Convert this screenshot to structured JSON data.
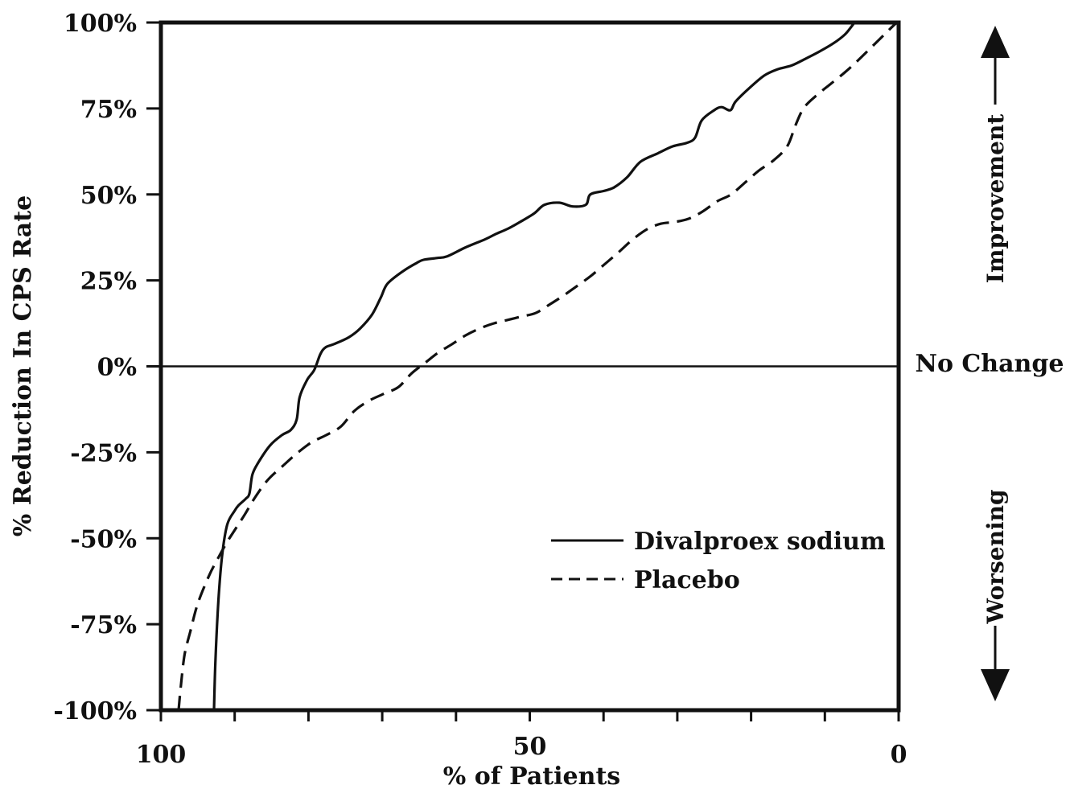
{
  "chart_data": {
    "type": "line",
    "xlabel": "% of Patients",
    "ylabel": "% Reduction In CPS Rate",
    "xlim": [
      100,
      0
    ],
    "ylim": [
      -100,
      100
    ],
    "x_ticks": [
      100,
      50,
      0
    ],
    "x_tick_labels": [
      "100",
      "50",
      "0"
    ],
    "x_minor_ticks": [
      100,
      90,
      80,
      70,
      60,
      50,
      40,
      30,
      20,
      10,
      0
    ],
    "y_ticks": [
      100,
      75,
      50,
      25,
      0,
      -25,
      -50,
      -75,
      -100
    ],
    "y_tick_labels": [
      "100%",
      "75%",
      "50%",
      "25%",
      "0%",
      "-25%",
      "-50%",
      "-75%",
      "-100%"
    ],
    "reference_line": {
      "y": 0,
      "label": "No Change"
    },
    "annotations": {
      "up": "Improvement",
      "down": "Worsening"
    },
    "legend_position": "lower-right",
    "grid": false,
    "series": [
      {
        "name": "Divalproex sodium",
        "style": "solid",
        "points": [
          [
            92.8,
            -100
          ],
          [
            92.6,
            -85
          ],
          [
            92.2,
            -68
          ],
          [
            91.7,
            -55
          ],
          [
            91,
            -46
          ],
          [
            90,
            -42
          ],
          [
            89.5,
            -40.5
          ],
          [
            88.5,
            -38.5
          ],
          [
            88,
            -37
          ],
          [
            87.6,
            -31.5
          ],
          [
            86.8,
            -28
          ],
          [
            85.2,
            -23
          ],
          [
            83.6,
            -20
          ],
          [
            82.4,
            -18.5
          ],
          [
            81.6,
            -15.5
          ],
          [
            81.2,
            -9
          ],
          [
            80.2,
            -4
          ],
          [
            79.2,
            -1
          ],
          [
            78.4,
            3.5
          ],
          [
            77.7,
            5.5
          ],
          [
            76.5,
            6.5
          ],
          [
            74.5,
            8.5
          ],
          [
            73,
            11
          ],
          [
            71.4,
            15
          ],
          [
            70.2,
            20
          ],
          [
            69.3,
            24
          ],
          [
            67.3,
            27.5
          ],
          [
            65.4,
            30
          ],
          [
            64.4,
            31
          ],
          [
            62.6,
            31.5
          ],
          [
            61.2,
            32
          ],
          [
            58.8,
            34.5
          ],
          [
            56,
            37
          ],
          [
            54.6,
            38.5
          ],
          [
            53,
            40
          ],
          [
            51.3,
            42
          ],
          [
            49.4,
            44.5
          ],
          [
            48,
            47
          ],
          [
            46,
            47.6
          ],
          [
            44.2,
            46.5
          ],
          [
            42.4,
            47
          ],
          [
            41.8,
            50
          ],
          [
            40,
            51
          ],
          [
            38.6,
            52
          ],
          [
            36.8,
            55
          ],
          [
            35,
            59.5
          ],
          [
            32.6,
            62
          ],
          [
            30.6,
            64
          ],
          [
            28.7,
            65
          ],
          [
            27.6,
            66.5
          ],
          [
            26.7,
            71.5
          ],
          [
            25,
            74.5
          ],
          [
            24,
            75.4
          ],
          [
            22.8,
            74.5
          ],
          [
            22.1,
            77
          ],
          [
            20.2,
            81
          ],
          [
            18.2,
            84.6
          ],
          [
            16.4,
            86.4
          ],
          [
            14.5,
            87.5
          ],
          [
            12.6,
            89.5
          ],
          [
            10.7,
            91.6
          ],
          [
            8.8,
            94
          ],
          [
            7.3,
            96.5
          ],
          [
            6.4,
            98.8
          ],
          [
            6,
            100
          ]
        ]
      },
      {
        "name": "Placebo",
        "style": "dashed",
        "points": [
          [
            97.6,
            -100
          ],
          [
            97.3,
            -93
          ],
          [
            96.8,
            -84
          ],
          [
            96,
            -77
          ],
          [
            95,
            -69
          ],
          [
            93.5,
            -61
          ],
          [
            92.3,
            -56
          ],
          [
            91,
            -51
          ],
          [
            89.8,
            -47
          ],
          [
            88.6,
            -43
          ],
          [
            87.2,
            -38
          ],
          [
            85.5,
            -33
          ],
          [
            83.5,
            -29
          ],
          [
            81.4,
            -25
          ],
          [
            79.5,
            -22
          ],
          [
            77.6,
            -20
          ],
          [
            75.6,
            -17.5
          ],
          [
            73.8,
            -13
          ],
          [
            71.8,
            -10
          ],
          [
            69.8,
            -8
          ],
          [
            67.8,
            -6
          ],
          [
            66,
            -2
          ],
          [
            64.2,
            1
          ],
          [
            62.4,
            4
          ],
          [
            60.5,
            6.5
          ],
          [
            58.7,
            9
          ],
          [
            56.8,
            11
          ],
          [
            54.9,
            12.5
          ],
          [
            53,
            13.5
          ],
          [
            51.1,
            14.5
          ],
          [
            49.2,
            15.5
          ],
          [
            47.3,
            18
          ],
          [
            45.5,
            20.5
          ],
          [
            43.5,
            23.5
          ],
          [
            41.6,
            26.5
          ],
          [
            39.7,
            30
          ],
          [
            37.8,
            33.5
          ],
          [
            36,
            37
          ],
          [
            34,
            40
          ],
          [
            32.2,
            41.5
          ],
          [
            30.3,
            42
          ],
          [
            28.4,
            43
          ],
          [
            26.6,
            45
          ],
          [
            24.6,
            48
          ],
          [
            22.7,
            50
          ],
          [
            20.8,
            53.5
          ],
          [
            18.9,
            57
          ],
          [
            16.9,
            60
          ],
          [
            15.1,
            64
          ],
          [
            14,
            70
          ],
          [
            12.9,
            75
          ],
          [
            11.3,
            78.5
          ],
          [
            9.3,
            82
          ],
          [
            7.3,
            85.5
          ],
          [
            5.5,
            89
          ],
          [
            3.6,
            93
          ],
          [
            1.7,
            97
          ],
          [
            0.5,
            99.5
          ],
          [
            0,
            100
          ]
        ]
      }
    ]
  }
}
